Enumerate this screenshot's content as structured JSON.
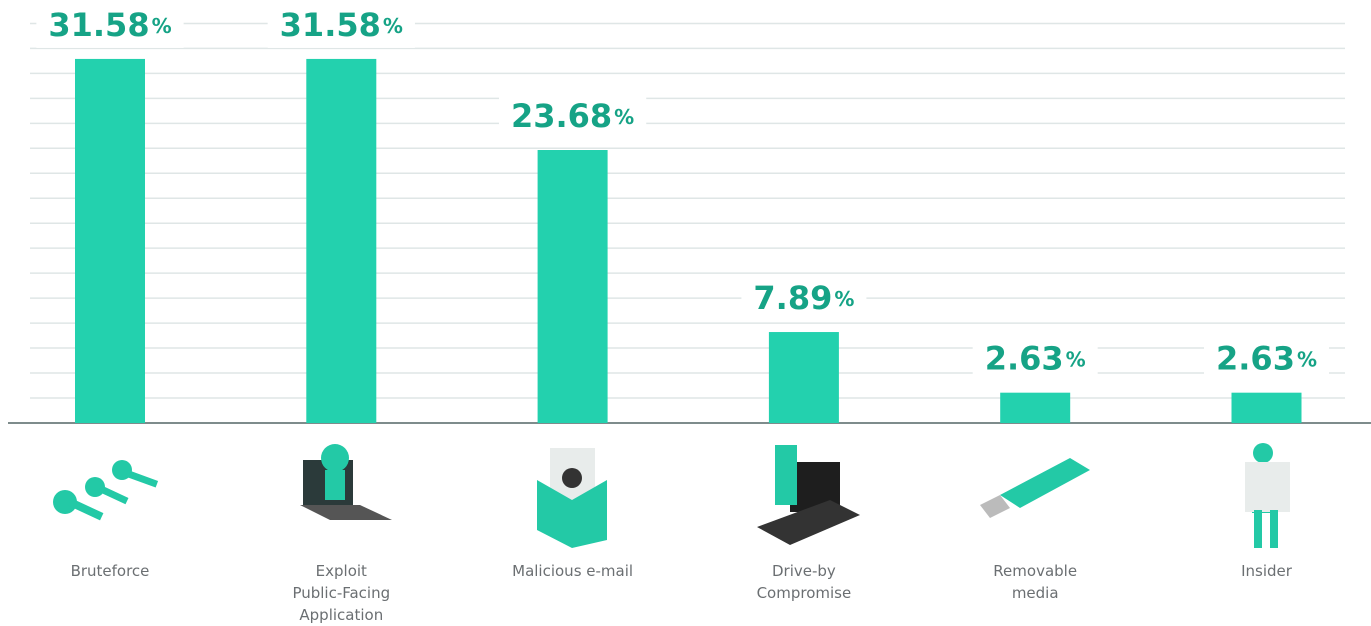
{
  "chart_data": {
    "type": "bar",
    "categories": [
      "Bruteforce",
      "Exploit\nPublic-Facing\nApplication",
      "Malicious e-mail",
      "Drive-by\nCompromise",
      "Removable\nmedia",
      "Insider"
    ],
    "values": [
      31.58,
      31.58,
      23.68,
      7.89,
      2.63,
      2.63
    ],
    "value_labels": [
      "31.58%",
      "31.58%",
      "23.68%",
      "7.89%",
      "2.63%",
      "2.63%"
    ],
    "color": "#23d1ae",
    "ylim": [
      0,
      35
    ]
  }
}
